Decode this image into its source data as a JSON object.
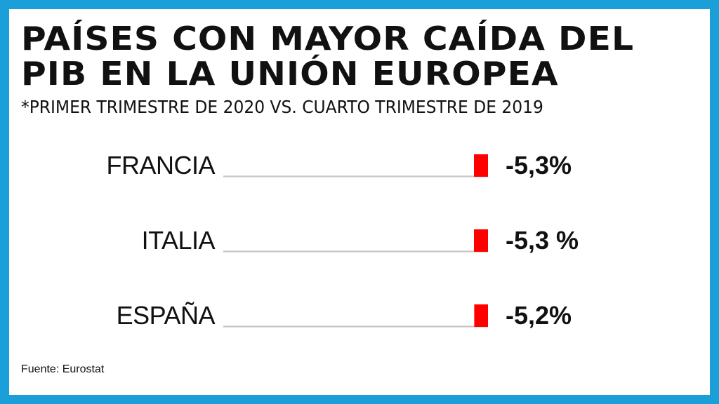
{
  "title_lines": [
    "PAÍSES CON MAYOR CAÍDA DEL",
    "PIB EN LA UNIÓN EUROPEA"
  ],
  "subtitle": "*PRIMER TRIMESTRE DE 2020 VS. CUARTO TRIMESTRE DE 2019",
  "source": "Fuente: Eurostat",
  "colors": {
    "frame": "#1a9fd9",
    "bar": "#ff0000",
    "track": "#d8d8d8",
    "text": "#111111"
  },
  "chart_data": {
    "type": "bar",
    "orientation": "horizontal",
    "categories": [
      "FRANCIA",
      "ITALIA",
      "ESPAÑA"
    ],
    "values": [
      -5.3,
      -5.3,
      -5.2
    ],
    "data_labels": [
      "-5,3%",
      "-5,3 %",
      "-5,2%"
    ],
    "title": "PAÍSES CON MAYOR CAÍDA DEL PIB EN LA UNIÓN EUROPEA",
    "subtitle": "*PRIMER TRIMESTRE DE 2020 VS. CUARTO TRIMESTRE DE 2019",
    "xlim": [
      -100,
      0
    ],
    "grid": false,
    "legend": "none"
  }
}
